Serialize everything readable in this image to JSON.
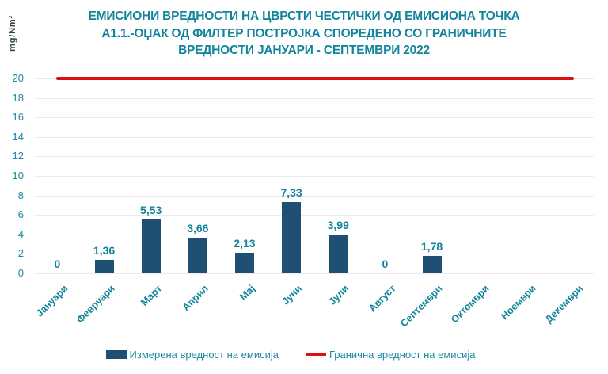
{
  "chart": {
    "title_lines": [
      "ЕМИСИОНИ ВРЕДНОСТИ НА ЦВРСТИ ЧЕСТИЧКИ ОД ЕМИСИОНА ТОЧКА",
      "А1.1.-ОЏАК ОД ФИЛТЕР ПОСТРОЈКА СПОРЕДЕНО СО ГРАНИЧНИТЕ",
      "ВРЕДНОСТИ ЈАНУАРИ - СЕПТЕМВРИ 2022"
    ],
    "y_axis": {
      "unit": "mg/Nm³"
    },
    "legend": {
      "measured": "Измерена вредност на емисија",
      "limit": "Гранична вредност на емисија"
    }
  },
  "chart_data": {
    "type": "bar",
    "title": "ЕМИСИОНИ ВРЕДНОСТИ НА ЦВРСТИ ЧЕСТИЧКИ ОД ЕМИСИОНА ТОЧКА А1.1.-ОЏАК ОД ФИЛТЕР ПОСТРОЈКА СПОРЕДЕНО СО ГРАНИЧНИТЕ ВРЕДНОСТИ ЈАНУАРИ - СЕПТЕМВРИ 2022",
    "categories": [
      "Јануари",
      "Февруари",
      "Март",
      "Април",
      "Мај",
      "Јуни",
      "Јули",
      "Август",
      "Септември",
      "Октомври",
      "Ноември",
      "Декември"
    ],
    "series": [
      {
        "name": "Измерена вредност на емисија",
        "type": "bar",
        "values": [
          0,
          1.36,
          5.53,
          3.66,
          2.13,
          7.33,
          3.99,
          0,
          1.78,
          null,
          null,
          null
        ],
        "data_labels": [
          "0",
          "1,36",
          "5,53",
          "3,66",
          "2,13",
          "7,33",
          "3,99",
          "0",
          "1,78",
          "",
          "",
          ""
        ]
      },
      {
        "name": "Гранична вредност на емисија",
        "type": "line",
        "values": [
          20,
          20,
          20,
          20,
          20,
          20,
          20,
          20,
          20,
          20,
          20,
          20
        ]
      }
    ],
    "ylabel": "mg/Nm³",
    "xlabel": "",
    "ylim": [
      0,
      20
    ],
    "y_ticks": [
      0,
      2,
      4,
      6,
      8,
      10,
      12,
      14,
      16,
      18,
      20
    ],
    "grid": true,
    "legend_position": "bottom"
  },
  "colors": {
    "bar": "#204F74",
    "limit_line": "#DD1111",
    "title_text": "#12849B",
    "axis_tick_text": "#1B8AA0",
    "value_label_text": "#12849B",
    "x_label_text": "#12849B",
    "unit_text": "#36444C",
    "gridline": "#ECECEC",
    "background": "#FFFFFF"
  }
}
